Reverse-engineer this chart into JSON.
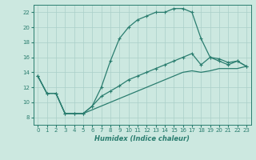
{
  "title": "",
  "xlabel": "Humidex (Indice chaleur)",
  "xlim": [
    -0.5,
    23.5
  ],
  "ylim": [
    7,
    23
  ],
  "yticks": [
    8,
    10,
    12,
    14,
    16,
    18,
    20,
    22
  ],
  "xticks": [
    0,
    1,
    2,
    3,
    4,
    5,
    6,
    7,
    8,
    9,
    10,
    11,
    12,
    13,
    14,
    15,
    16,
    17,
    18,
    19,
    20,
    21,
    22,
    23
  ],
  "bg_color": "#cce8e0",
  "line_color": "#2a7d6f",
  "grid_color": "#aacfc8",
  "line1_x": [
    0,
    1,
    2,
    3,
    4,
    5,
    6,
    7,
    8,
    9,
    10,
    11,
    12,
    13,
    14,
    15,
    16,
    17,
    18,
    19,
    20,
    21,
    22,
    23
  ],
  "line1_y": [
    13.5,
    11.2,
    11.2,
    8.5,
    8.5,
    8.5,
    9.5,
    12.0,
    15.5,
    18.5,
    20.0,
    21.0,
    21.5,
    22.0,
    22.0,
    22.5,
    22.5,
    22.0,
    18.5,
    16.0,
    15.5,
    15.0,
    15.5,
    14.8
  ],
  "line1_markers": [
    0,
    1,
    2,
    3,
    4,
    5,
    6,
    7,
    8,
    9,
    10,
    11,
    12,
    13,
    14,
    15,
    16,
    17,
    18,
    19,
    20,
    21,
    22,
    23
  ],
  "line2_x": [
    0,
    1,
    2,
    3,
    4,
    5,
    6,
    7,
    8,
    9,
    10,
    11,
    12,
    13,
    14,
    15,
    16,
    17,
    18,
    19,
    20,
    21,
    22,
    23
  ],
  "line2_y": [
    13.5,
    11.2,
    11.2,
    8.5,
    8.5,
    8.5,
    9.5,
    10.8,
    11.5,
    12.2,
    13.0,
    13.5,
    14.0,
    14.5,
    15.0,
    15.5,
    16.0,
    16.5,
    15.0,
    16.0,
    15.8,
    15.3,
    15.5,
    14.8
  ],
  "line2_markers": [
    0,
    1,
    2,
    3,
    4,
    5,
    6,
    7,
    8,
    9,
    10,
    11,
    12,
    13,
    14,
    15,
    16,
    17,
    18,
    19,
    20,
    21,
    22,
    23
  ],
  "line3_x": [
    0,
    1,
    2,
    3,
    4,
    5,
    6,
    7,
    8,
    9,
    10,
    11,
    12,
    13,
    14,
    15,
    16,
    17,
    18,
    19,
    20,
    21,
    22,
    23
  ],
  "line3_y": [
    13.5,
    11.2,
    11.2,
    8.5,
    8.5,
    8.5,
    9.0,
    9.5,
    10.0,
    10.5,
    11.0,
    11.5,
    12.0,
    12.5,
    13.0,
    13.5,
    14.0,
    14.2,
    14.0,
    14.2,
    14.5,
    14.5,
    14.5,
    14.8
  ]
}
